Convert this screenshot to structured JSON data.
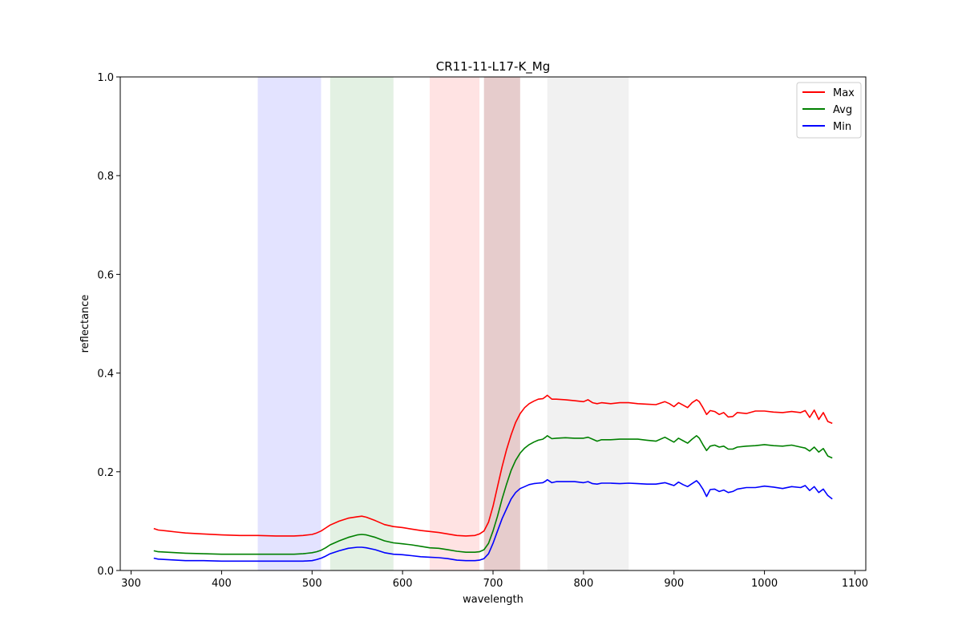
{
  "chart_data": {
    "type": "line",
    "title": "CR11-11-L17-K_Mg",
    "xlabel": "wavelength",
    "ylabel": "reflectance",
    "xlim": [
      288,
      1112
    ],
    "ylim": [
      0,
      1.0
    ],
    "xticks": [
      300,
      400,
      500,
      600,
      700,
      800,
      900,
      1000,
      1100
    ],
    "yticks": [
      0.0,
      0.2,
      0.4,
      0.6,
      0.8,
      1.0
    ],
    "grid": false,
    "legend_position": "upper right",
    "bands": [
      {
        "x0": 440,
        "x1": 510,
        "color": "#0000ff",
        "opacity": 0.11
      },
      {
        "x0": 520,
        "x1": 590,
        "color": "#008000",
        "opacity": 0.11
      },
      {
        "x0": 630,
        "x1": 685,
        "color": "#ff0000",
        "opacity": 0.11
      },
      {
        "x0": 690,
        "x1": 730,
        "color": "#800000",
        "opacity": 0.2
      },
      {
        "x0": 760,
        "x1": 850,
        "color": "#808080",
        "opacity": 0.11
      }
    ],
    "x": [
      325,
      330,
      340,
      350,
      360,
      380,
      400,
      420,
      440,
      460,
      480,
      490,
      500,
      505,
      510,
      515,
      520,
      530,
      540,
      550,
      555,
      560,
      570,
      580,
      590,
      600,
      610,
      620,
      630,
      640,
      650,
      660,
      670,
      680,
      685,
      690,
      695,
      700,
      705,
      710,
      715,
      720,
      725,
      730,
      735,
      740,
      745,
      750,
      755,
      758,
      760,
      765,
      770,
      780,
      790,
      800,
      805,
      810,
      815,
      820,
      830,
      840,
      850,
      860,
      870,
      880,
      890,
      895,
      900,
      905,
      910,
      915,
      920,
      925,
      928,
      932,
      936,
      940,
      945,
      950,
      955,
      960,
      965,
      970,
      980,
      990,
      1000,
      1010,
      1020,
      1030,
      1040,
      1045,
      1050,
      1055,
      1060,
      1065,
      1070,
      1075
    ],
    "series": [
      {
        "name": "Max",
        "color": "#ff0000",
        "values": [
          0.085,
          0.082,
          0.08,
          0.078,
          0.076,
          0.074,
          0.072,
          0.071,
          0.071,
          0.07,
          0.07,
          0.071,
          0.073,
          0.076,
          0.08,
          0.086,
          0.092,
          0.1,
          0.106,
          0.109,
          0.11,
          0.108,
          0.101,
          0.093,
          0.089,
          0.087,
          0.084,
          0.081,
          0.079,
          0.077,
          0.074,
          0.071,
          0.07,
          0.071,
          0.074,
          0.08,
          0.098,
          0.13,
          0.17,
          0.21,
          0.245,
          0.275,
          0.3,
          0.318,
          0.33,
          0.338,
          0.343,
          0.347,
          0.348,
          0.352,
          0.355,
          0.347,
          0.347,
          0.346,
          0.344,
          0.342,
          0.346,
          0.34,
          0.338,
          0.34,
          0.338,
          0.34,
          0.34,
          0.338,
          0.337,
          0.336,
          0.342,
          0.338,
          0.332,
          0.34,
          0.335,
          0.33,
          0.34,
          0.346,
          0.342,
          0.33,
          0.316,
          0.324,
          0.322,
          0.316,
          0.32,
          0.311,
          0.312,
          0.32,
          0.318,
          0.323,
          0.323,
          0.321,
          0.32,
          0.322,
          0.32,
          0.324,
          0.31,
          0.325,
          0.306,
          0.32,
          0.302,
          0.298
        ]
      },
      {
        "name": "Avg",
        "color": "#008000",
        "values": [
          0.04,
          0.038,
          0.037,
          0.036,
          0.035,
          0.034,
          0.033,
          0.033,
          0.033,
          0.033,
          0.033,
          0.034,
          0.036,
          0.038,
          0.041,
          0.046,
          0.052,
          0.06,
          0.067,
          0.072,
          0.073,
          0.072,
          0.067,
          0.06,
          0.056,
          0.054,
          0.052,
          0.049,
          0.046,
          0.045,
          0.042,
          0.039,
          0.037,
          0.037,
          0.038,
          0.042,
          0.055,
          0.08,
          0.11,
          0.145,
          0.175,
          0.203,
          0.223,
          0.238,
          0.248,
          0.255,
          0.26,
          0.264,
          0.266,
          0.27,
          0.273,
          0.267,
          0.268,
          0.269,
          0.268,
          0.268,
          0.27,
          0.266,
          0.262,
          0.265,
          0.265,
          0.266,
          0.266,
          0.266,
          0.264,
          0.262,
          0.27,
          0.265,
          0.26,
          0.268,
          0.263,
          0.258,
          0.266,
          0.273,
          0.268,
          0.255,
          0.243,
          0.252,
          0.254,
          0.25,
          0.252,
          0.246,
          0.246,
          0.25,
          0.252,
          0.253,
          0.255,
          0.253,
          0.252,
          0.254,
          0.25,
          0.248,
          0.242,
          0.25,
          0.24,
          0.247,
          0.232,
          0.228
        ]
      },
      {
        "name": "Min",
        "color": "#0000ff",
        "values": [
          0.025,
          0.023,
          0.022,
          0.021,
          0.02,
          0.02,
          0.019,
          0.019,
          0.019,
          0.019,
          0.019,
          0.019,
          0.02,
          0.022,
          0.025,
          0.029,
          0.034,
          0.04,
          0.045,
          0.047,
          0.047,
          0.046,
          0.042,
          0.036,
          0.033,
          0.032,
          0.03,
          0.028,
          0.027,
          0.026,
          0.024,
          0.021,
          0.02,
          0.02,
          0.021,
          0.024,
          0.034,
          0.055,
          0.08,
          0.105,
          0.125,
          0.145,
          0.158,
          0.166,
          0.17,
          0.174,
          0.176,
          0.177,
          0.178,
          0.181,
          0.184,
          0.178,
          0.18,
          0.18,
          0.18,
          0.178,
          0.18,
          0.176,
          0.175,
          0.177,
          0.177,
          0.176,
          0.177,
          0.176,
          0.175,
          0.175,
          0.178,
          0.175,
          0.172,
          0.179,
          0.174,
          0.17,
          0.176,
          0.182,
          0.176,
          0.165,
          0.15,
          0.164,
          0.165,
          0.16,
          0.163,
          0.158,
          0.16,
          0.165,
          0.168,
          0.168,
          0.171,
          0.169,
          0.166,
          0.17,
          0.168,
          0.172,
          0.162,
          0.17,
          0.158,
          0.165,
          0.152,
          0.145
        ]
      }
    ]
  }
}
